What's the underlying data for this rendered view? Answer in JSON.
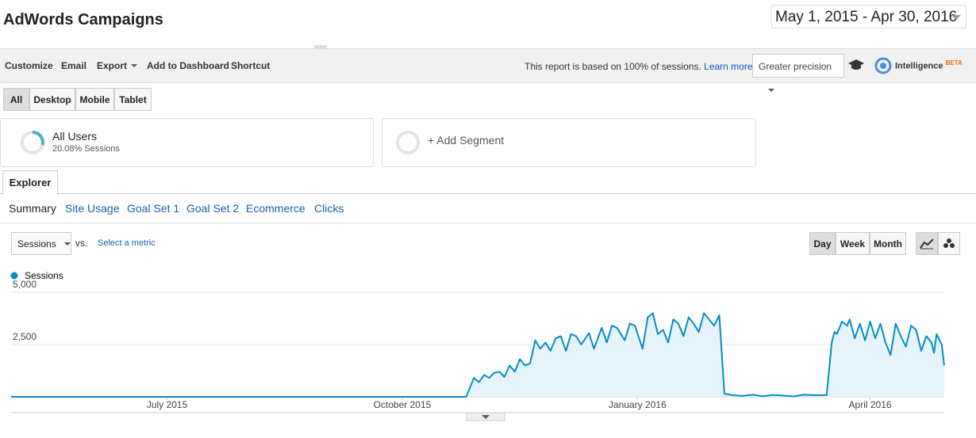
{
  "header": {
    "title": "AdWords Campaigns",
    "date_range": "May 1, 2015 - Apr 30, 2016"
  },
  "toolbar": {
    "items": [
      "Customize",
      "Email",
      "Export",
      "Add to Dashboard",
      "Shortcut"
    ],
    "sampling_note": "This report is based on 100% of sessions.",
    "learn_more": "Learn more",
    "precision": "Greater precision",
    "intelligence": "Intelligence",
    "beta": "BETA"
  },
  "device_tabs": [
    "All",
    "Desktop",
    "Mobile",
    "Tablet"
  ],
  "segments": [
    {
      "name": "All Users",
      "detail": "20.08% Sessions"
    },
    {
      "name": "+ Add Segment"
    }
  ],
  "explorer_tab": "Explorer",
  "sub_tabs": [
    "Summary",
    "Site Usage",
    "Goal Set 1",
    "Goal Set 2",
    "Ecommerce",
    "Clicks"
  ],
  "metric": "Sessions",
  "vs": "vs.",
  "select_metric": "Select a metric",
  "granularity": [
    "Day",
    "Week",
    "Month"
  ],
  "chart": {
    "type": "line",
    "x": [
      0,
      178,
      181,
      183,
      185,
      187,
      189,
      191,
      193,
      195,
      197,
      199,
      201,
      203,
      205,
      207,
      209,
      211,
      213,
      215,
      217,
      219,
      221,
      223,
      226,
      228,
      231,
      233,
      235,
      237,
      240,
      242,
      244,
      247,
      249,
      251,
      253,
      255,
      257,
      259,
      261,
      263,
      265,
      267,
      269,
      271,
      273,
      275,
      277,
      279,
      282,
      286,
      290,
      294,
      298,
      302,
      306,
      310,
      314,
      319,
      321,
      322,
      323,
      325,
      327,
      328,
      330,
      332,
      334,
      336,
      338,
      340,
      342,
      344,
      346,
      348,
      350,
      352,
      354,
      356,
      358,
      360,
      361,
      362,
      364,
      365
    ],
    "series": [
      {
        "name": "Sessions",
        "color": "#058dc7",
        "values": [
          0,
          0,
          900,
          700,
          1050,
          900,
          1150,
          1200,
          950,
          1500,
          1200,
          1800,
          1500,
          1600,
          2700,
          2300,
          2600,
          2200,
          2800,
          2900,
          2200,
          3000,
          2900,
          2500,
          3050,
          2300,
          3300,
          2600,
          3400,
          3300,
          2700,
          3500,
          3400,
          2300,
          3800,
          4000,
          3000,
          3200,
          2600,
          3700,
          3500,
          2900,
          3800,
          3500,
          3100,
          4000,
          3700,
          3400,
          3900,
          150,
          80,
          40,
          100,
          30,
          90,
          60,
          20,
          100,
          80,
          80,
          2600,
          3100,
          3000,
          3600,
          3400,
          3700,
          2800,
          3500,
          2700,
          3600,
          2800,
          3500,
          2600,
          2000,
          3500,
          2900,
          2400,
          3400,
          3200,
          2200,
          2900,
          2600,
          2100,
          3000,
          2500,
          1500
        ]
      }
    ],
    "xlim": [
      0,
      365
    ],
    "xticks": [
      {
        "value": 61,
        "label": "July 2015"
      },
      {
        "value": 153,
        "label": "October 2015"
      },
      {
        "value": 245,
        "label": "January 2016"
      },
      {
        "value": 336,
        "label": "April 2016"
      }
    ],
    "ylim": [
      0,
      5000
    ],
    "yticks": [
      {
        "value": 2500,
        "label": "2,500"
      },
      {
        "value": 5000,
        "label": "5,000"
      }
    ],
    "grid": true
  }
}
